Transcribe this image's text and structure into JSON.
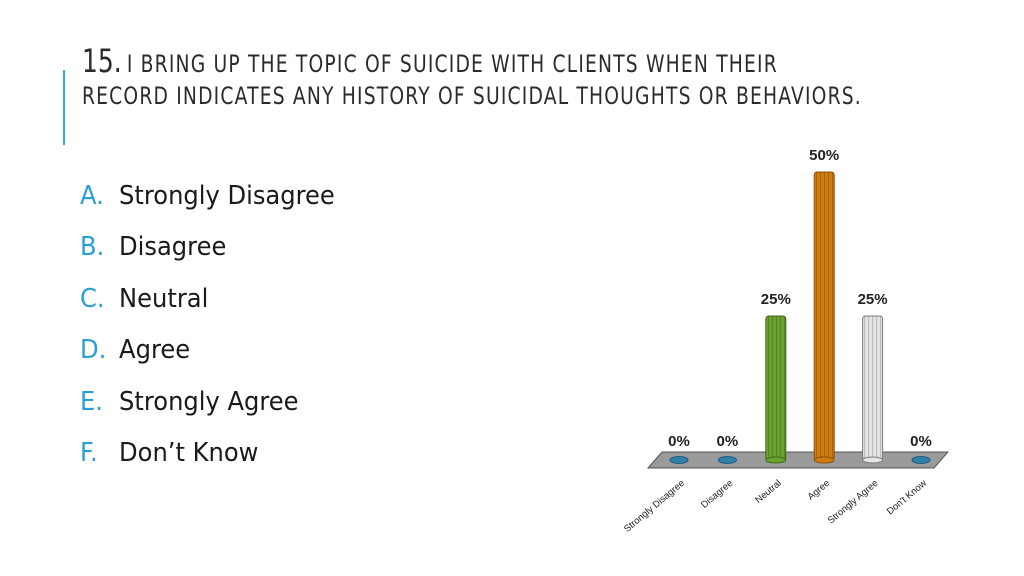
{
  "slide": {
    "number": "15.",
    "title_line1": "I bring up the topic of suicide with clients when their",
    "title_line2": "record indicates any history of suicidal thoughts or behaviors."
  },
  "options": [
    {
      "letter": "A.",
      "text": "Strongly Disagree"
    },
    {
      "letter": "B.",
      "text": "Disagree"
    },
    {
      "letter": "C.",
      "text": "Neutral"
    },
    {
      "letter": "D.",
      "text": "Agree"
    },
    {
      "letter": "E.",
      "text": "Strongly Agree"
    },
    {
      "letter": "F.",
      "text": "Don’t Know"
    }
  ],
  "colors": {
    "accent": "#3aa8d8",
    "neutral_bar": "#6aa230",
    "agree_bar": "#d07d10",
    "strongly_agree_bar": "#e6e6e6",
    "zero_marker": "#2f7fa8",
    "floor": "#9a9a9a"
  },
  "chart_data": {
    "type": "bar",
    "categories": [
      "Strongly Disagree",
      "Disagree",
      "Neutral",
      "Agree",
      "Strongly Agree",
      "Don't Know"
    ],
    "values": [
      0,
      0,
      25,
      50,
      25,
      0
    ],
    "data_labels": [
      "0%",
      "0%",
      "25%",
      "50%",
      "25%",
      "0%"
    ],
    "ylim": [
      0,
      50
    ],
    "grid": false,
    "legend": "none"
  }
}
